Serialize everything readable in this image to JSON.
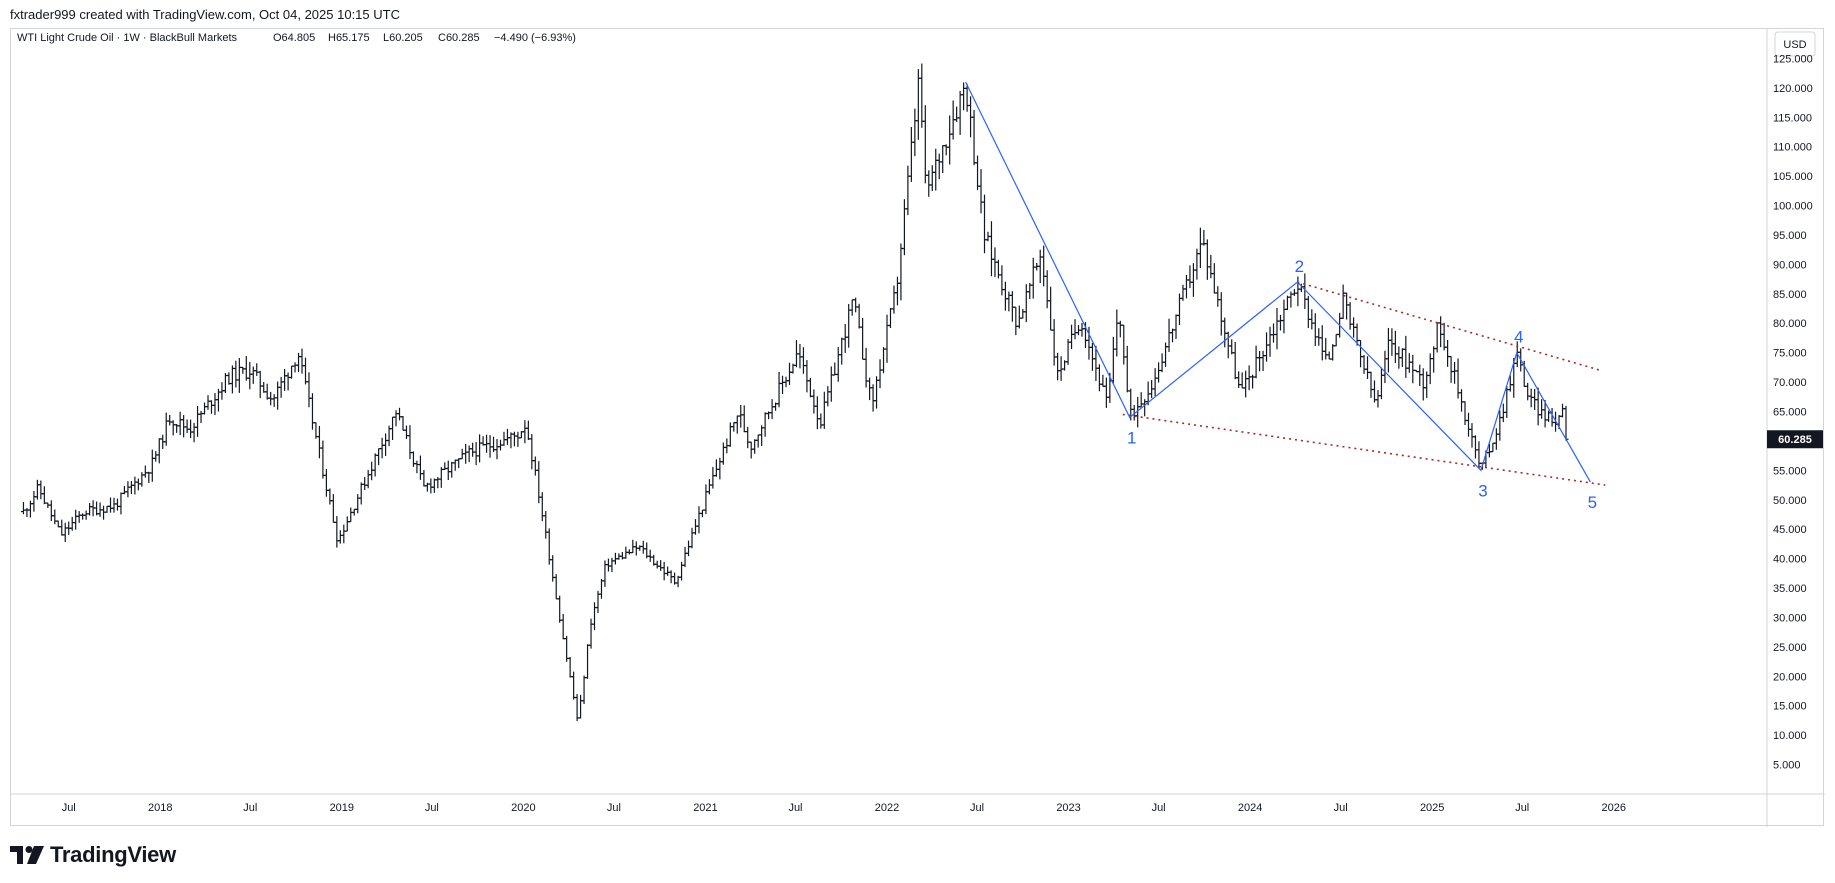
{
  "header": {
    "credit": "fxtrader999 created with TradingView.com, Oct 04, 2025 10:15 UTC"
  },
  "brand": {
    "name": "TradingView",
    "icon": "tradingview-logo-icon"
  },
  "legend": {
    "symbol": "WTI Light Crude Oil · 1W · BlackBull Markets",
    "open": "O64.805",
    "high": "H65.175",
    "low": "L60.205",
    "close": "C60.285",
    "change": "−4.490 (−6.93%)"
  },
  "colors": {
    "bars": "#131722",
    "wave": "#2962ff",
    "channel": "#a52a2a",
    "price_tag_bg": "#131722",
    "axis_border": "#d1d4dc"
  },
  "chart_data": {
    "type": "ohlc-bar",
    "title": "WTI Light Crude Oil · 1W · BlackBull Markets",
    "currency": "USD",
    "ylim": [
      0,
      130
    ],
    "y_ticks": [
      5,
      10,
      15,
      20,
      25,
      30,
      35,
      40,
      45,
      50,
      55,
      60,
      65,
      70,
      75,
      80,
      85,
      90,
      95,
      100,
      105,
      110,
      115,
      120,
      125
    ],
    "y_tick_labels": [
      "5.000",
      "10.000",
      "15.000",
      "20.000",
      "25.000",
      "30.000",
      "35.000",
      "40.000",
      "45.000",
      "50.000",
      "55.000",
      "60.000",
      "65.000",
      "70.000",
      "75.000",
      "80.000",
      "85.000",
      "90.000",
      "95.000",
      "100.000",
      "105.000",
      "110.000",
      "115.000",
      "120.000",
      "125.000"
    ],
    "xlim": [
      "2017-03-15",
      "2026-10-20"
    ],
    "x_ticks": [
      {
        "date": "2017-07-01",
        "label": "Jul"
      },
      {
        "date": "2018-01-01",
        "label": "2018"
      },
      {
        "date": "2018-07-01",
        "label": "Jul"
      },
      {
        "date": "2019-01-01",
        "label": "2019"
      },
      {
        "date": "2019-07-01",
        "label": "Jul"
      },
      {
        "date": "2020-01-01",
        "label": "2020"
      },
      {
        "date": "2020-07-01",
        "label": "Jul"
      },
      {
        "date": "2021-01-01",
        "label": "2021"
      },
      {
        "date": "2021-07-01",
        "label": "Jul"
      },
      {
        "date": "2022-01-01",
        "label": "2022"
      },
      {
        "date": "2022-07-01",
        "label": "Jul"
      },
      {
        "date": "2023-01-01",
        "label": "2023"
      },
      {
        "date": "2023-07-01",
        "label": "Jul"
      },
      {
        "date": "2024-01-01",
        "label": "2024"
      },
      {
        "date": "2024-07-01",
        "label": "Jul"
      },
      {
        "date": "2025-01-01",
        "label": "2025"
      },
      {
        "date": "2025-07-01",
        "label": "Jul"
      },
      {
        "date": "2026-01-01",
        "label": "2026"
      }
    ],
    "last_price": "60.285",
    "price_path": [
      [
        "2017-04-01",
        48
      ],
      [
        "2017-05-01",
        52
      ],
      [
        "2017-06-15",
        44
      ],
      [
        "2017-08-01",
        48
      ],
      [
        "2017-10-01",
        49
      ],
      [
        "2017-12-15",
        56
      ],
      [
        "2018-01-20",
        64
      ],
      [
        "2018-03-01",
        62
      ],
      [
        "2018-05-20",
        71
      ],
      [
        "2018-07-01",
        72
      ],
      [
        "2018-08-15",
        67
      ],
      [
        "2018-10-05",
        75
      ],
      [
        "2018-12-24",
        43
      ],
      [
        "2019-04-20",
        65
      ],
      [
        "2019-06-15",
        52
      ],
      [
        "2019-09-15",
        58
      ],
      [
        "2019-12-20",
        61
      ],
      [
        "2020-01-06",
        63
      ],
      [
        "2020-02-01",
        51
      ],
      [
        "2020-03-10",
        32
      ],
      [
        "2020-04-20",
        12
      ],
      [
        "2020-05-15",
        29
      ],
      [
        "2020-06-15",
        39
      ],
      [
        "2020-08-20",
        42
      ],
      [
        "2020-11-01",
        36
      ],
      [
        "2021-01-08",
        52
      ],
      [
        "2021-03-08",
        65
      ],
      [
        "2021-04-01",
        59
      ],
      [
        "2021-07-06",
        75
      ],
      [
        "2021-08-20",
        63
      ],
      [
        "2021-10-25",
        84
      ],
      [
        "2021-12-01",
        66
      ],
      [
        "2022-01-20",
        86
      ],
      [
        "2022-03-07",
        122
      ],
      [
        "2022-03-20",
        102
      ],
      [
        "2022-06-08",
        121
      ],
      [
        "2022-07-15",
        95
      ],
      [
        "2022-09-20",
        80
      ],
      [
        "2022-11-07",
        92
      ],
      [
        "2022-12-09",
        71
      ],
      [
        "2023-01-25",
        81
      ],
      [
        "2023-03-20",
        66
      ],
      [
        "2023-04-12",
        83
      ],
      [
        "2023-05-04",
        64
      ],
      [
        "2023-06-20",
        70
      ],
      [
        "2023-09-27",
        94
      ],
      [
        "2023-12-13",
        68
      ],
      [
        "2024-04-05",
        87
      ],
      [
        "2024-06-04",
        73
      ],
      [
        "2024-07-05",
        84
      ],
      [
        "2024-09-10",
        66
      ],
      [
        "2024-10-07",
        77
      ],
      [
        "2024-12-15",
        70
      ],
      [
        "2025-01-15",
        80
      ],
      [
        "2025-04-09",
        55
      ],
      [
        "2025-05-15",
        63
      ],
      [
        "2025-06-20",
        75
      ],
      [
        "2025-07-15",
        67
      ],
      [
        "2025-09-01",
        63
      ],
      [
        "2025-09-25",
        66
      ],
      [
        "2025-10-03",
        60.285
      ]
    ],
    "annotations": {
      "wave_line": [
        [
          "2022-06-08",
          121
        ],
        [
          "2023-05-04",
          64
        ],
        [
          "2024-04-05",
          87
        ],
        [
          "2025-04-09",
          55
        ],
        [
          "2025-06-20",
          75
        ],
        [
          "2025-11-15",
          53
        ]
      ],
      "wave_labels": [
        {
          "label": "1",
          "date": "2023-05-04",
          "price": 64
        },
        {
          "label": "2",
          "date": "2024-04-05",
          "price": 87
        },
        {
          "label": "3",
          "date": "2025-04-09",
          "price": 55
        },
        {
          "label": "4",
          "date": "2025-06-20",
          "price": 75
        },
        {
          "label": "5",
          "date": "2025-11-15",
          "price": 53
        }
      ],
      "channel_upper": [
        [
          "2024-04-05",
          87
        ],
        [
          "2025-12-05",
          72
        ]
      ],
      "channel_lower": [
        [
          "2023-04-20",
          64.5
        ],
        [
          "2025-12-15",
          52.5
        ]
      ]
    }
  }
}
